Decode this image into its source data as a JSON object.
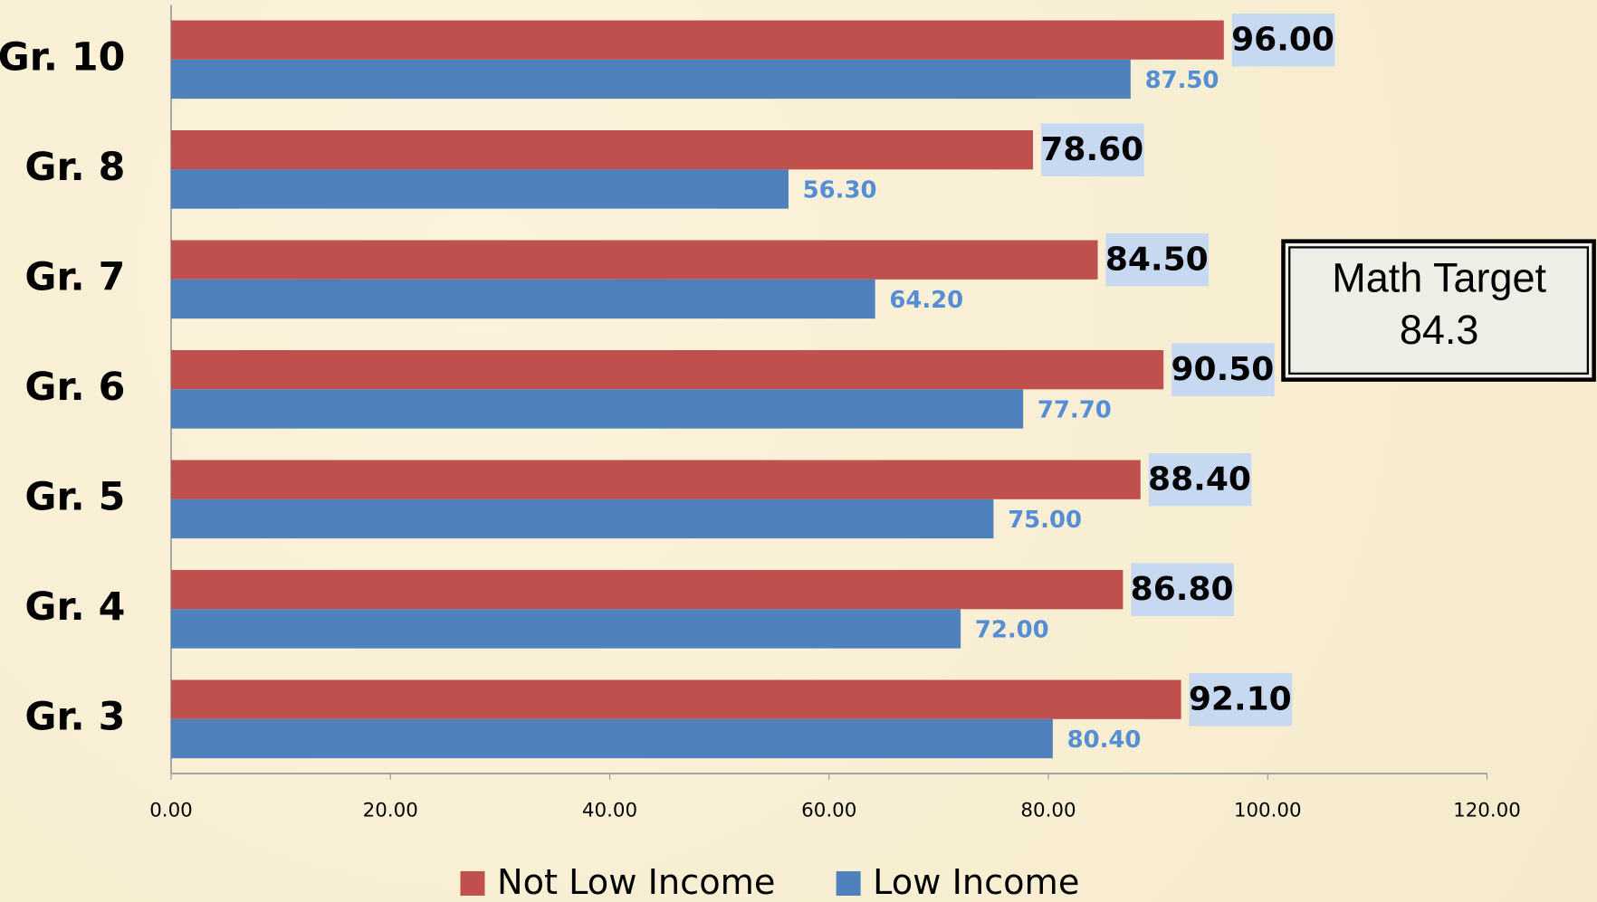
{
  "chart_data": {
    "type": "barh",
    "categories": [
      "Gr. 10",
      "Gr. 8",
      "Gr. 7",
      "Gr. 6",
      "Gr. 5",
      "Gr. 4",
      "Gr. 3"
    ],
    "series": [
      {
        "name": "Not Low Income",
        "color": "#c0504d",
        "values": [
          96.0,
          78.6,
          84.5,
          90.5,
          88.4,
          86.8,
          92.1
        ],
        "value_labels": [
          "96.00",
          "78.60",
          "84.50",
          "90.50",
          "88.40",
          "86.80",
          "92.10"
        ]
      },
      {
        "name": "Low Income",
        "color": "#4f81bd",
        "values": [
          87.5,
          56.3,
          64.2,
          77.7,
          75.0,
          72.0,
          80.4
        ],
        "value_labels": [
          "87.50",
          "56.30",
          "64.20",
          "77.70",
          "75.00",
          "72.00",
          "80.40"
        ]
      }
    ],
    "xlim": [
      0,
      120
    ],
    "xticks": [
      {
        "value": 0,
        "label": "0.00"
      },
      {
        "value": 20,
        "label": "20.00"
      },
      {
        "value": 40,
        "label": "40.00"
      },
      {
        "value": 60,
        "label": "60.00"
      },
      {
        "value": 80,
        "label": "80.00"
      },
      {
        "value": 100,
        "label": "100.00"
      },
      {
        "value": 120,
        "label": "120.00"
      }
    ],
    "grid": false,
    "legend": "bottom",
    "annotation": {
      "label": "Math Target",
      "value": 84.3
    }
  }
}
